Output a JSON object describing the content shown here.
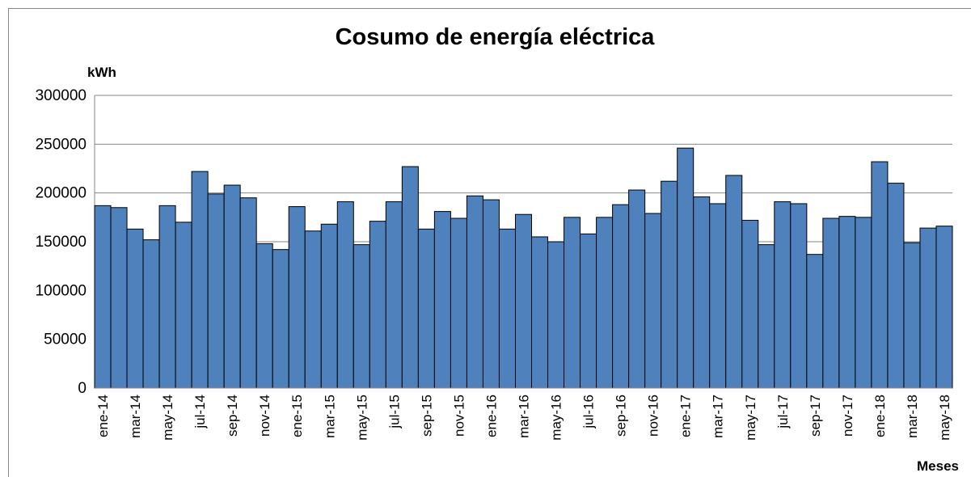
{
  "chart_data": {
    "type": "bar",
    "title": "Cosumo de energía eléctrica",
    "y_label": "kWh",
    "x_label": "Meses",
    "categories": [
      "ene-14",
      null,
      "mar-14",
      null,
      "may-14",
      null,
      "jul-14",
      null,
      "sep-14",
      null,
      "nov-14",
      null,
      "ene-15",
      null,
      "mar-15",
      null,
      "may-15",
      null,
      "jul-15",
      null,
      "sep-15",
      null,
      "nov-15",
      null,
      "ene-16",
      null,
      "mar-16",
      null,
      "may-16",
      null,
      "jul-16",
      null,
      "sep-16",
      null,
      "nov-16",
      null,
      "ene-17",
      null,
      "mar-17",
      null,
      "may-17",
      null,
      "jul-17",
      null,
      "sep-17",
      null,
      "nov-17",
      null,
      "ene-18",
      null,
      "mar-18",
      null,
      "may-18"
    ],
    "values": [
      187000,
      185000,
      163000,
      152000,
      187000,
      170000,
      222000,
      199000,
      208000,
      195000,
      148000,
      142000,
      186000,
      161000,
      168000,
      191000,
      147000,
      171000,
      191000,
      227000,
      163000,
      181000,
      174000,
      197000,
      193000,
      163000,
      178000,
      155000,
      150000,
      175000,
      158000,
      175000,
      188000,
      203000,
      179000,
      212000,
      246000,
      196000,
      189000,
      218000,
      172000,
      147000,
      191000,
      189000,
      137000,
      174000,
      176000,
      175000,
      232000,
      210000,
      149000,
      164000,
      166000
    ],
    "color": "#4f81bd",
    "ylim": [
      0,
      300000
    ],
    "yticks": [
      0,
      50000,
      100000,
      150000,
      200000,
      250000,
      300000
    ],
    "grid": true
  }
}
